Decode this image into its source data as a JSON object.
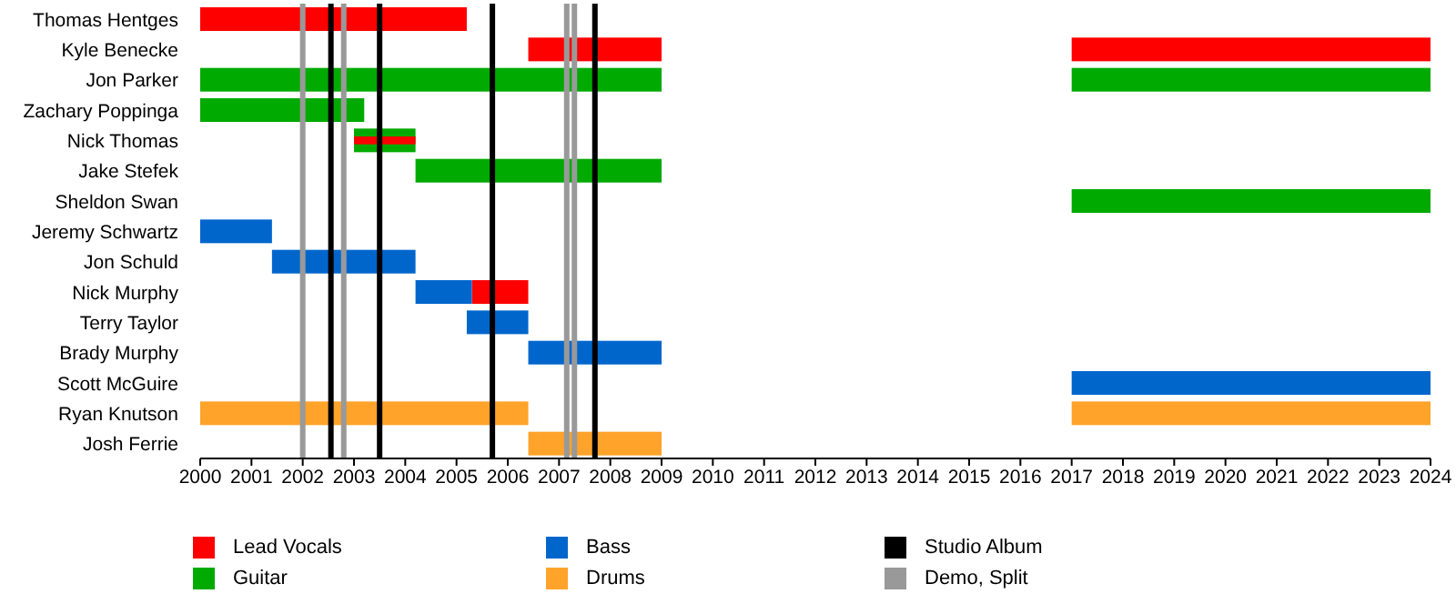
{
  "chart_data": {
    "type": "bar",
    "orientation": "horizontal",
    "categories": [
      "Thomas Hentges",
      "Kyle Benecke",
      "Jon Parker",
      "Zachary Poppinga",
      "Nick Thomas",
      "Jake Stefek",
      "Sheldon Swan",
      "Jeremy Schwartz",
      "Jon Schuld",
      "Nick Murphy",
      "Terry Taylor",
      "Brady Murphy",
      "Scott McGuire",
      "Ryan Knutson",
      "Josh Ferrie"
    ],
    "series": [
      {
        "name": "Lead Vocals",
        "color": "#ff0000",
        "values": [
          5.2,
          2.6,
          null,
          null,
          null,
          null,
          null,
          null,
          null,
          1.1,
          null,
          null,
          null,
          null,
          null
        ],
        "base": [
          2000,
          2006.4,
          null,
          null,
          null,
          null,
          null,
          null,
          null,
          2005.3,
          null,
          null,
          null,
          null,
          null
        ]
      },
      {
        "name": "Guitar",
        "color": "#00aa00",
        "values": [
          null,
          null,
          9,
          3.2,
          1.2,
          4.8,
          null,
          null,
          null,
          null,
          null,
          null,
          null,
          null,
          null
        ],
        "base": [
          null,
          null,
          2000,
          2000,
          2003,
          2004.2,
          null,
          null,
          null,
          null,
          null,
          null,
          null,
          null,
          null
        ]
      },
      {
        "name": "Bass",
        "color": "#0066cc",
        "values": [
          null,
          null,
          null,
          null,
          null,
          null,
          null,
          1.4,
          2.8,
          1.1,
          1.2,
          2.6,
          null,
          null,
          null
        ],
        "base": [
          null,
          null,
          null,
          null,
          null,
          null,
          null,
          2000,
          2001.4,
          2004.2,
          2005.2,
          2006.4,
          null,
          null,
          null
        ]
      },
      {
        "name": "Drums",
        "color": "#ffa32a",
        "values": [
          null,
          null,
          null,
          null,
          null,
          null,
          null,
          null,
          null,
          null,
          null,
          null,
          null,
          6.4,
          2.6
        ],
        "base": [
          null,
          null,
          null,
          null,
          null,
          null,
          null,
          null,
          null,
          null,
          null,
          null,
          null,
          2000,
          2006.4
        ]
      },
      {
        "color": "#ff0000",
        "values": [
          null,
          7,
          null,
          null,
          1.2,
          null,
          null,
          null,
          null,
          null,
          null,
          null,
          null,
          null,
          null
        ],
        "base": [
          null,
          2017,
          null,
          null,
          2003,
          null,
          null,
          null,
          null,
          null,
          null,
          null,
          null,
          null,
          null
        ]
      },
      {
        "color": "#00aa00",
        "values": [
          null,
          null,
          7,
          null,
          null,
          null,
          7,
          null,
          null,
          null,
          null,
          null,
          null,
          null,
          null
        ],
        "base": [
          null,
          null,
          2017,
          null,
          null,
          null,
          2017,
          null,
          null,
          null,
          null,
          null,
          null,
          null,
          null
        ]
      },
      {
        "color": "#0066cc",
        "values": [
          null,
          null,
          null,
          null,
          null,
          null,
          null,
          null,
          null,
          null,
          null,
          null,
          7,
          null,
          null
        ],
        "base": [
          null,
          null,
          null,
          null,
          null,
          null,
          null,
          null,
          null,
          null,
          null,
          null,
          2017,
          null,
          null
        ]
      },
      {
        "color": "#ffa32a",
        "values": [
          null,
          null,
          null,
          null,
          null,
          null,
          null,
          null,
          null,
          null,
          null,
          null,
          null,
          7,
          null
        ],
        "base": [
          null,
          null,
          null,
          null,
          null,
          null,
          null,
          null,
          null,
          null,
          null,
          null,
          null,
          2017,
          null
        ]
      }
    ],
    "ref_lines": [
      {
        "axis": "x",
        "value": 2002.55,
        "label": "Studio Album",
        "color": "#000000"
      },
      {
        "axis": "x",
        "value": 2002,
        "label": "Demo, Split",
        "color": "#999999"
      },
      {
        "axis": "x",
        "value": 2002.8,
        "color": "#999999"
      },
      {
        "axis": "x",
        "value": 2003.5,
        "color": "#000000"
      },
      {
        "axis": "x",
        "value": 2005.7,
        "color": "#000000"
      },
      {
        "axis": "x",
        "value": 2007.15,
        "color": "#999999"
      },
      {
        "axis": "x",
        "value": 2007.3,
        "color": "#999999"
      },
      {
        "axis": "x",
        "value": 2007.7,
        "color": "#000000"
      }
    ],
    "xlim": [
      2000,
      2024
    ],
    "xticks": [
      2000,
      2001,
      2002,
      2003,
      2004,
      2005,
      2006,
      2007,
      2008,
      2009,
      2010,
      2011,
      2012,
      2013,
      2014,
      2015,
      2016,
      2017,
      2018,
      2019,
      2020,
      2021,
      2022,
      2023,
      2024
    ],
    "grid": false,
    "legend": "bottom"
  }
}
